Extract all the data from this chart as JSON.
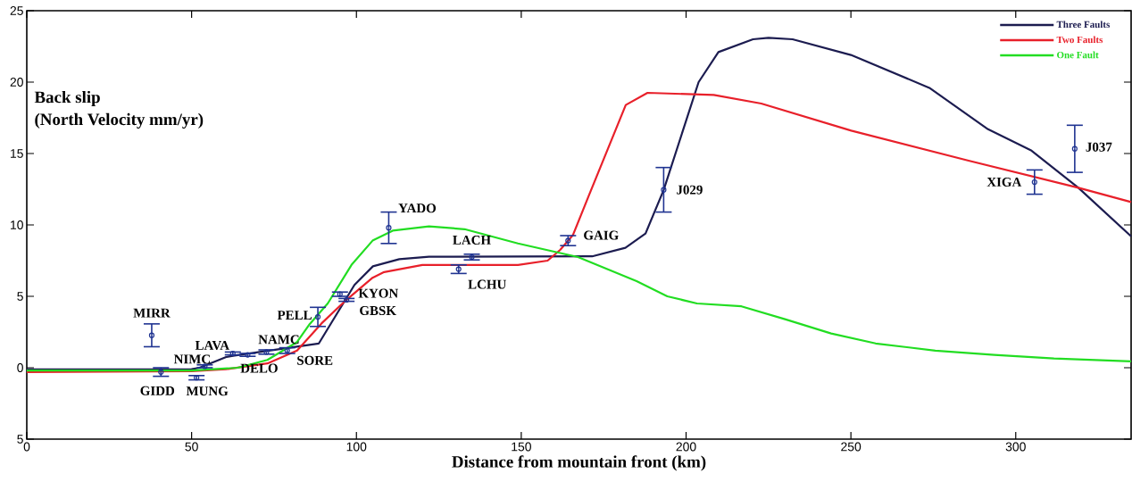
{
  "chart_data": {
    "type": "line",
    "title": "Back slip",
    "ylabel": "(North Velocity mm/yr)",
    "xlabel": "Distance from mountain front (km)",
    "xlim": [
      0,
      335
    ],
    "ylim": [
      -5,
      25
    ],
    "xticks": [
      0,
      50,
      100,
      150,
      200,
      250,
      300
    ],
    "yticks": [
      {
        "value": -5,
        "label": "5"
      },
      0,
      5,
      10,
      15,
      20,
      25
    ],
    "legend": "top right",
    "series": [
      {
        "name": "Three Faults",
        "color": "#1c1c50",
        "x": [
          0,
          50,
          52.4,
          60.5,
          63,
          88.6,
          99.4,
          105,
          113,
          122,
          171.5,
          181.6,
          187.7,
          193.2,
          203.8,
          209.8,
          220.3,
          225,
          232.3,
          250,
          273.8,
          291.6,
          304.8,
          319,
          335
        ],
        "values": [
          -0.12,
          -0.1,
          0,
          0.75,
          0.85,
          1.7,
          5.8,
          7.1,
          7.6,
          7.77,
          7.8,
          8.4,
          9.4,
          12.45,
          20.0,
          22.1,
          23.0,
          23.1,
          23.0,
          21.9,
          19.6,
          16.7,
          15.2,
          12.6,
          9.2
        ]
      },
      {
        "name": "Two Faults",
        "color": "#e8202a",
        "x": [
          0,
          50,
          60.5,
          73,
          82,
          89.4,
          96.7,
          104.9,
          108.4,
          120,
          149,
          158,
          161.8,
          165.7,
          170.5,
          181.7,
          188.3,
          208.4,
          222.8,
          250.1,
          285.7,
          319,
          335
        ],
        "values": [
          -0.3,
          -0.25,
          -0.1,
          0.3,
          1.2,
          3.1,
          4.7,
          6.3,
          6.7,
          7.2,
          7.2,
          7.5,
          8.25,
          9.3,
          12.05,
          18.4,
          19.25,
          19.1,
          18.5,
          16.6,
          14.5,
          12.6,
          11.6
        ]
      },
      {
        "name": "One Fault",
        "color": "#22dd22",
        "x": [
          0,
          50,
          64,
          73,
          82,
          85.8,
          91.3,
          98.5,
          104.9,
          111,
          122,
          132.8,
          149,
          167.2,
          185,
          194.3,
          203.3,
          216.8,
          230,
          244,
          257.5,
          275.6,
          293.5,
          311.6,
          335
        ],
        "values": [
          -0.2,
          -0.2,
          0,
          0.55,
          1.8,
          3.05,
          4.5,
          7.2,
          8.9,
          9.6,
          9.9,
          9.7,
          8.7,
          7.75,
          6.06,
          5.0,
          4.5,
          4.3,
          3.4,
          2.4,
          1.7,
          1.2,
          0.9,
          0.65,
          0.45
        ]
      },
      {
        "type": "scatter",
        "color": "#1f3391",
        "marker": "circle",
        "x": [
          37.9,
          40.7,
          51.5,
          54,
          62.5,
          67,
          72.7,
          79,
          88.3,
          95,
          97,
          109.8,
          131,
          135,
          164.2,
          193.2,
          305.7,
          317.9
        ],
        "values": [
          2.27,
          -0.3,
          -0.7,
          0.1,
          1.0,
          0.9,
          1.1,
          1.2,
          3.56,
          5.15,
          4.75,
          9.8,
          6.9,
          7.75,
          8.9,
          12.46,
          13.0,
          15.33
        ],
        "errors": [
          0.8,
          0.3,
          0.15,
          0.1,
          0.1,
          0.1,
          0.15,
          0.2,
          0.67,
          0.15,
          0.1,
          1.1,
          0.3,
          0.2,
          0.35,
          1.56,
          0.85,
          1.65
        ]
      }
    ],
    "annotations": [
      {
        "text": "MIRR",
        "x": 37.9,
        "y": 2.27
      },
      {
        "text": "GIDD",
        "x": 40.7,
        "y": -0.3
      },
      {
        "text": "MUNG",
        "x": 51.5,
        "y": -0.7
      },
      {
        "text": "NIMC",
        "x": 54,
        "y": 0.1
      },
      {
        "text": "LAVA",
        "x": 62.5,
        "y": 1.0
      },
      {
        "text": "DELO",
        "x": 67,
        "y": 0.9
      },
      {
        "text": "NAMC",
        "x": 72.7,
        "y": 1.1
      },
      {
        "text": "SORE",
        "x": 79,
        "y": 1.2
      },
      {
        "text": "PELL",
        "x": 88.3,
        "y": 3.56
      },
      {
        "text": "KYON",
        "x": 95,
        "y": 5.15
      },
      {
        "text": "GBSK",
        "x": 97,
        "y": 4.75
      },
      {
        "text": "YADO",
        "x": 109.8,
        "y": 9.8
      },
      {
        "text": "LCHU",
        "x": 131,
        "y": 6.9
      },
      {
        "text": "LACH",
        "x": 135,
        "y": 7.75
      },
      {
        "text": "GAIG",
        "x": 164.2,
        "y": 8.9
      },
      {
        "text": "J029",
        "x": 193.2,
        "y": 12.46
      },
      {
        "text": "XIGA",
        "x": 305.7,
        "y": 13.0
      },
      {
        "text": "J037",
        "x": 317.9,
        "y": 15.33
      }
    ]
  }
}
